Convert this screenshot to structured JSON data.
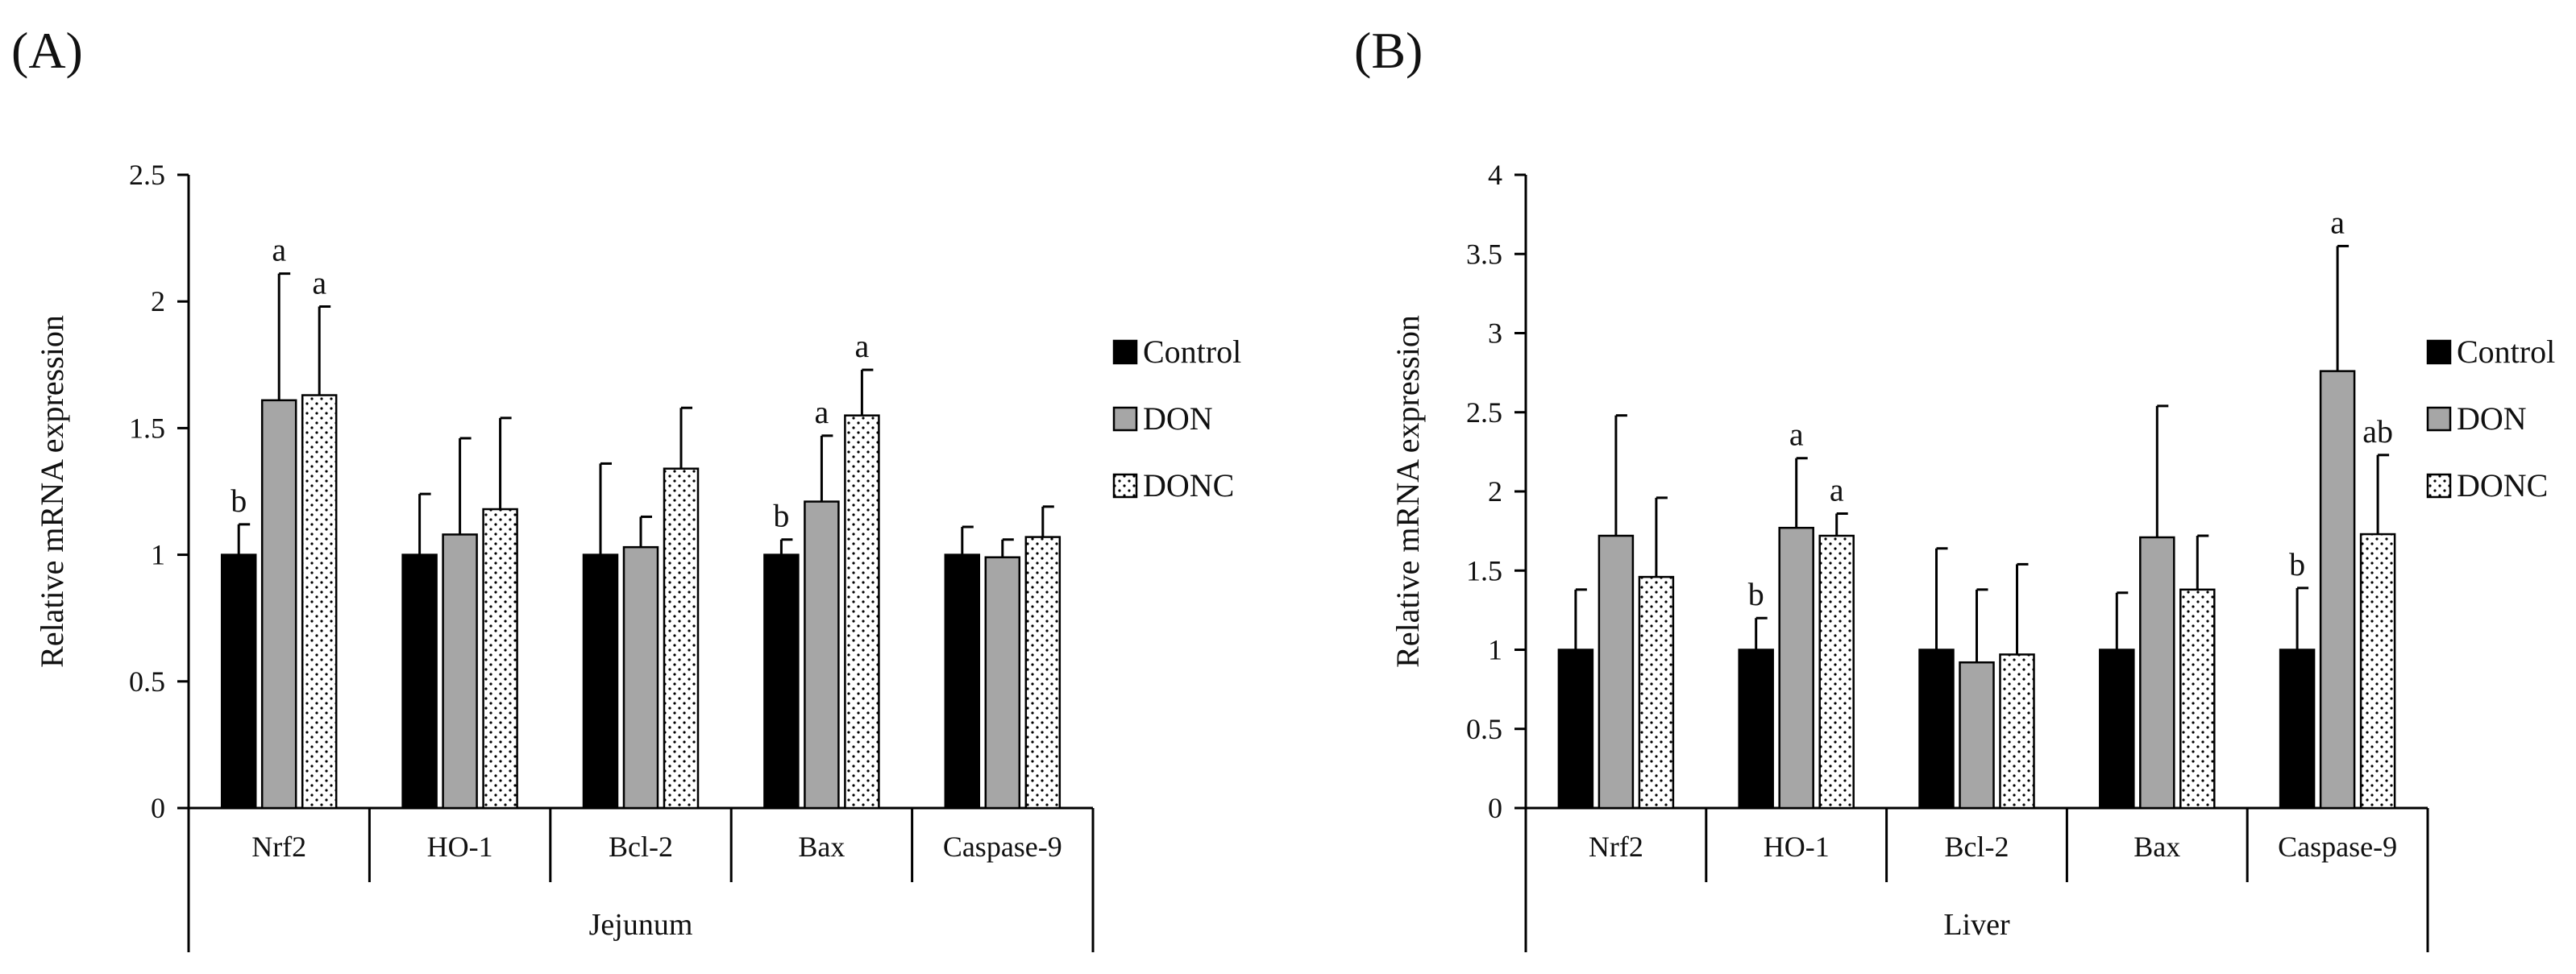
{
  "colors": {
    "control": "#000000",
    "don": "#a6a6a6",
    "donc_fill": "#ffffff",
    "donc_dots": "#000000",
    "axis": "#000000"
  },
  "chart_data": [
    {
      "panel_label": "(A)",
      "panel_letter": "A",
      "type": "bar",
      "group_label": "Jejunum",
      "ylabel": "Relative mRNA expression",
      "ylim": [
        0,
        2.5
      ],
      "ytick_values": [
        0,
        0.5,
        1,
        1.5,
        2,
        2.5
      ],
      "ytick_labels": [
        "0",
        "0.5",
        "1",
        "1.5",
        "2",
        "2.5"
      ],
      "categories": [
        "Nrf2",
        "HO-1",
        "Bcl-2",
        "Bax",
        "Caspase-9"
      ],
      "legend": [
        "Control",
        "DON",
        "DONC"
      ],
      "legend_position": "right",
      "series": [
        {
          "name": "Control",
          "values": [
            1.0,
            1.0,
            1.0,
            1.0,
            1.0
          ],
          "errors": [
            0.12,
            0.24,
            0.36,
            0.06,
            0.11
          ],
          "labels": [
            "b",
            "",
            "",
            "b",
            ""
          ]
        },
        {
          "name": "DON",
          "values": [
            1.61,
            1.08,
            1.03,
            1.21,
            0.99
          ],
          "errors": [
            0.5,
            0.38,
            0.12,
            0.26,
            0.07
          ],
          "labels": [
            "a",
            "",
            "",
            "a",
            ""
          ]
        },
        {
          "name": "DONC",
          "values": [
            1.63,
            1.18,
            1.34,
            1.55,
            1.07
          ],
          "errors": [
            0.35,
            0.36,
            0.24,
            0.18,
            0.12
          ],
          "labels": [
            "a",
            "",
            "",
            "a",
            ""
          ]
        }
      ]
    },
    {
      "panel_label": "(B)",
      "panel_letter": "B",
      "type": "bar",
      "group_label": "Liver",
      "ylabel": "Relative mRNA expression",
      "ylim": [
        0,
        4
      ],
      "ytick_values": [
        0,
        0.5,
        1,
        1.5,
        2,
        2.5,
        3,
        3.5,
        4
      ],
      "ytick_labels": [
        "0",
        "0.5",
        "1",
        "1.5",
        "2",
        "2.5",
        "3",
        "3.5",
        "4"
      ],
      "categories": [
        "Nrf2",
        "HO-1",
        "Bcl-2",
        "Bax",
        "Caspase-9"
      ],
      "legend": [
        "Control",
        "DON",
        "DONC"
      ],
      "legend_position": "right",
      "series": [
        {
          "name": "Control",
          "values": [
            1.0,
            1.0,
            1.0,
            1.0,
            1.0
          ],
          "errors": [
            0.38,
            0.2,
            0.64,
            0.36,
            0.39
          ],
          "labels": [
            "",
            "b",
            "",
            "",
            "b"
          ]
        },
        {
          "name": "DON",
          "values": [
            1.72,
            1.77,
            0.92,
            1.71,
            2.76
          ],
          "errors": [
            0.76,
            0.44,
            0.46,
            0.83,
            0.79
          ],
          "labels": [
            "",
            "a",
            "",
            "",
            "a"
          ]
        },
        {
          "name": "DONC",
          "values": [
            1.46,
            1.72,
            0.97,
            1.38,
            1.73
          ],
          "errors": [
            0.5,
            0.14,
            0.57,
            0.34,
            0.5
          ],
          "labels": [
            "",
            "a",
            "",
            "",
            "ab"
          ]
        }
      ]
    }
  ]
}
